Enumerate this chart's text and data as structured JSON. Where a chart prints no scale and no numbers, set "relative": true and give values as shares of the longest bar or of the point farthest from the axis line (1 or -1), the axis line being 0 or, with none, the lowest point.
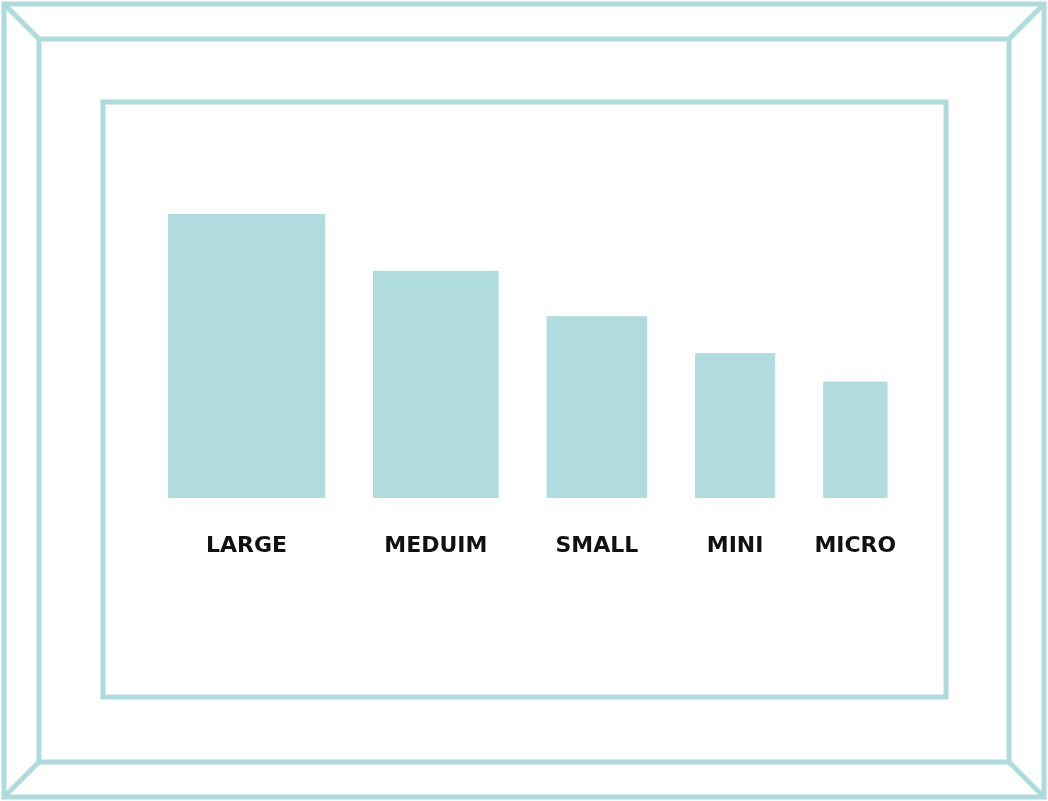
{
  "chart_data": {
    "type": "bar",
    "relative": true,
    "categories": [
      "LARGE",
      "MEDUIM",
      "SMALL",
      "MINI",
      "MICRO"
    ],
    "values": [
      1,
      0.8,
      0.64,
      0.51,
      0.41
    ],
    "color": "#b0dcdf"
  }
}
